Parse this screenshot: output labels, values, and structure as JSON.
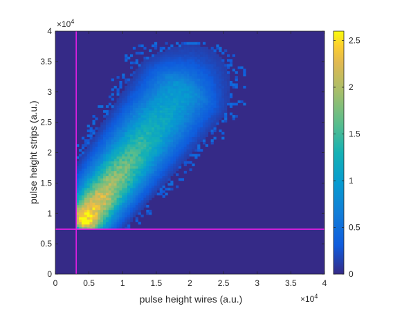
{
  "chart_data": {
    "type": "heatmap",
    "xlabel": "pulse height wires (a.u.)",
    "ylabel": "pulse height strips (a.u.)",
    "x_multiplier_label": "×10",
    "x_multiplier_exponent": "4",
    "y_multiplier_label": "×10",
    "y_multiplier_exponent": "4",
    "xlim": [
      0,
      40000
    ],
    "ylim": [
      0,
      40000
    ],
    "x_ticks": [
      0,
      5000,
      10000,
      15000,
      20000,
      25000,
      30000,
      35000,
      40000
    ],
    "x_tick_labels": [
      "0",
      "0.5",
      "1",
      "1.5",
      "2",
      "2.5",
      "3",
      "3.5",
      "4"
    ],
    "y_ticks": [
      0,
      5000,
      10000,
      15000,
      20000,
      25000,
      30000,
      35000,
      40000
    ],
    "y_tick_labels": [
      "0",
      "0.5",
      "1",
      "1.5",
      "2",
      "2.5",
      "3",
      "3.5",
      "4"
    ],
    "colorbar": {
      "range": [
        0,
        2.6
      ],
      "ticks": [
        0,
        0.5,
        1,
        1.5,
        2,
        2.5
      ],
      "tick_labels": [
        "0",
        "0.5",
        "1",
        "1.5",
        "2",
        "2.5"
      ],
      "colormap": "parula"
    },
    "density_ridge": {
      "description_points_x": [
        3500,
        5000,
        8000,
        12000,
        16000,
        20000
      ],
      "description_points_y": [
        8000,
        11000,
        16000,
        22000,
        28000,
        33000
      ],
      "peak_value": 2.5,
      "peak_x": 5000,
      "peak_y": 11000
    },
    "cut_lines": [
      {
        "orientation": "vertical",
        "x": 3100,
        "color": "#e61ee6"
      },
      {
        "orientation": "horizontal",
        "y": 7400,
        "color": "#e61ee6"
      }
    ],
    "grid": false,
    "background_color": "#352a87"
  }
}
